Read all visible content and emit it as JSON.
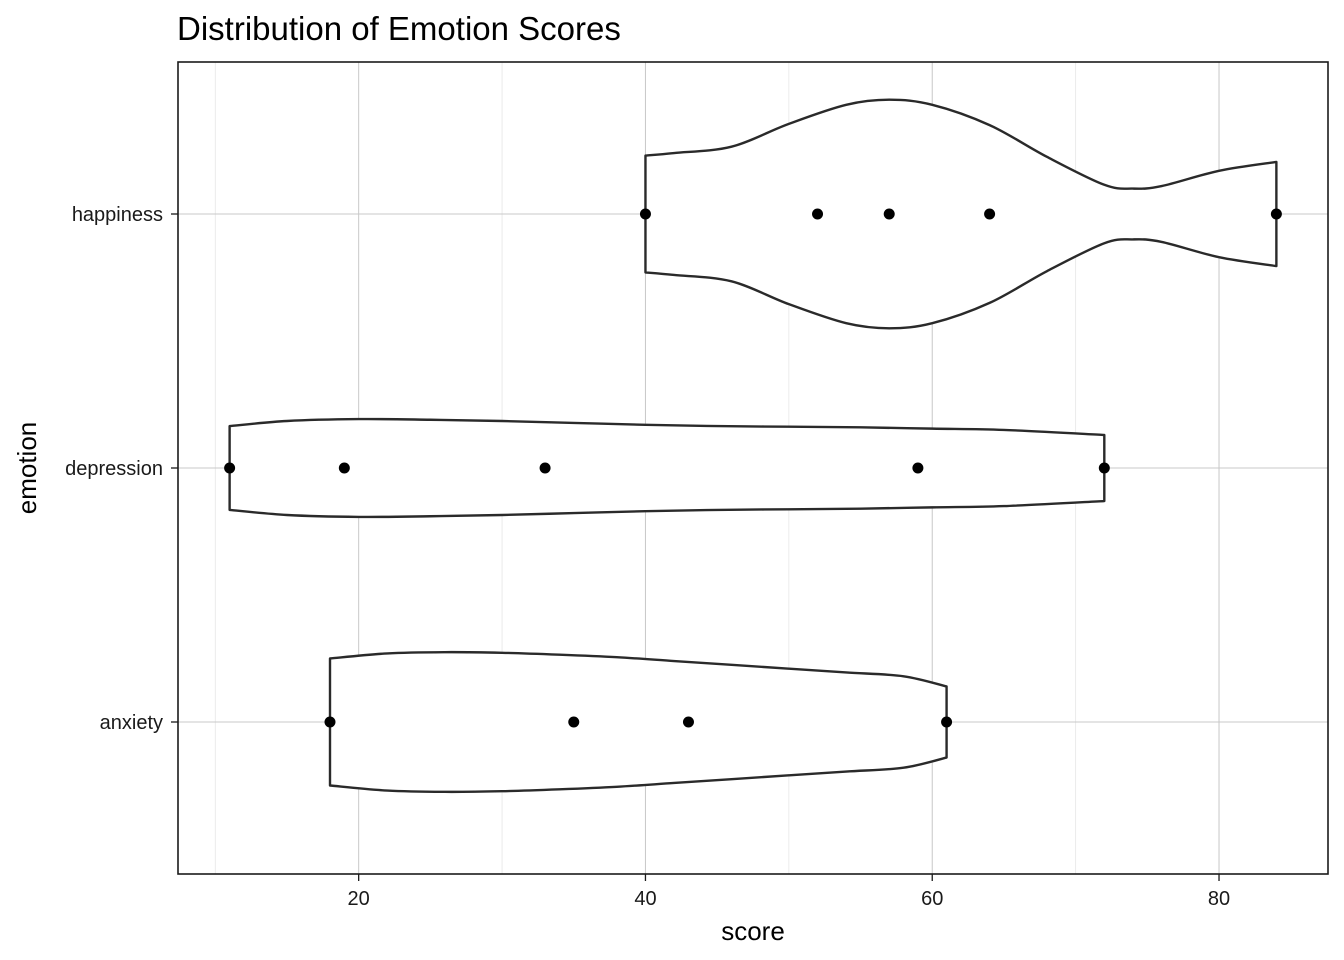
{
  "chart_data": {
    "type": "violin",
    "title": "Distribution of Emotion Scores",
    "xlabel": "score",
    "ylabel": "emotion",
    "xlim": [
      7.4,
      87.6
    ],
    "x_ticks": [
      20,
      40,
      60,
      80
    ],
    "x_minor_ticks": [
      10,
      30,
      50,
      70
    ],
    "categories": [
      "anxiety",
      "depression",
      "happiness"
    ],
    "grid": true,
    "series": [
      {
        "category": "anxiety",
        "points": [
          18,
          35,
          43,
          61
        ],
        "density": {
          "x": [
            18,
            22,
            26,
            30,
            34,
            38,
            42,
            46,
            50,
            54,
            58,
            61
          ],
          "halfwidth": [
            0.5,
            0.54,
            0.55,
            0.545,
            0.53,
            0.51,
            0.48,
            0.45,
            0.42,
            0.39,
            0.36,
            0.28
          ]
        }
      },
      {
        "category": "depression",
        "points": [
          11,
          19,
          33,
          59,
          72
        ],
        "density": {
          "x": [
            11,
            15,
            20,
            25,
            30,
            35,
            40,
            45,
            50,
            55,
            60,
            65,
            72
          ],
          "halfwidth": [
            0.33,
            0.37,
            0.385,
            0.38,
            0.37,
            0.355,
            0.34,
            0.33,
            0.325,
            0.32,
            0.31,
            0.3,
            0.26
          ]
        }
      },
      {
        "category": "happiness",
        "points": [
          40,
          52,
          57,
          64,
          84
        ],
        "density": {
          "x": [
            40,
            42,
            46,
            50,
            54,
            57,
            60,
            64,
            68,
            72,
            74,
            76,
            80,
            84
          ],
          "halfwidth": [
            0.46,
            0.48,
            0.53,
            0.71,
            0.86,
            0.9,
            0.86,
            0.7,
            0.45,
            0.23,
            0.2,
            0.22,
            0.34,
            0.41
          ]
        }
      }
    ]
  }
}
